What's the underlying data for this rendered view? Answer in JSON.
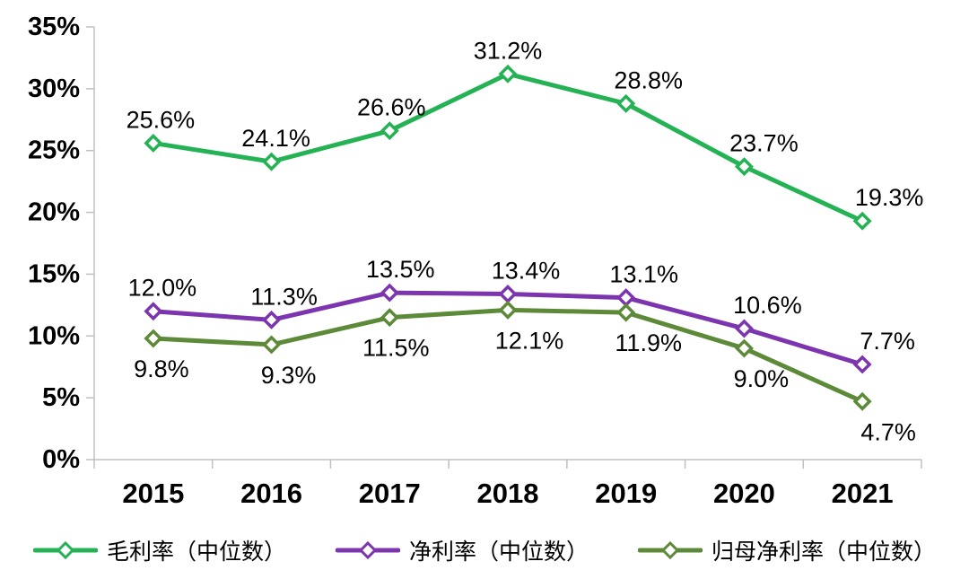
{
  "chart_data": {
    "type": "line",
    "categories": [
      "2015",
      "2016",
      "2017",
      "2018",
      "2019",
      "2020",
      "2021"
    ],
    "series": [
      {
        "id": "gross-margin",
        "name": "毛利率（中位数）",
        "color": "#24B254",
        "values": [
          25.6,
          24.1,
          26.6,
          31.2,
          28.8,
          23.7,
          19.3
        ],
        "labels": [
          "25.6%",
          "24.1%",
          "26.6%",
          "31.2%",
          "28.8%",
          "23.7%",
          "19.3%"
        ],
        "label_position": "above",
        "label_dx": [
          8,
          5,
          2,
          0,
          25,
          22,
          30
        ]
      },
      {
        "id": "net-margin",
        "name": "净利率（中位数）",
        "color": "#7C35AE",
        "values": [
          12.0,
          11.3,
          13.5,
          13.4,
          13.1,
          10.6,
          7.7
        ],
        "labels": [
          "12.0%",
          "11.3%",
          "13.5%",
          "13.4%",
          "13.1%",
          "10.6%",
          "7.7%"
        ],
        "label_position": "above",
        "label_dx": [
          10,
          14,
          12,
          20,
          20,
          26,
          28
        ]
      },
      {
        "id": "parent-net-margin",
        "name": "归母净利率（中位数）",
        "color": "#5C8A38",
        "values": [
          9.8,
          9.3,
          11.5,
          12.1,
          11.9,
          9.0,
          4.7
        ],
        "labels": [
          "9.8%",
          "9.3%",
          "11.5%",
          "12.1%",
          "11.9%",
          "9.0%",
          "4.7%"
        ],
        "label_position": "below",
        "label_dx": [
          9,
          19,
          7,
          24,
          25,
          19,
          29
        ]
      }
    ],
    "y_tick_labels": [
      "0%",
      "5%",
      "10%",
      "15%",
      "20%",
      "25%",
      "30%",
      "35%"
    ],
    "ylim": [
      0,
      35
    ],
    "grid": false,
    "legend_position": "bottom",
    "marker": "open-diamond",
    "axis_color": "#C0C0C0",
    "text_color": "#000000",
    "value_suffix": "%"
  }
}
